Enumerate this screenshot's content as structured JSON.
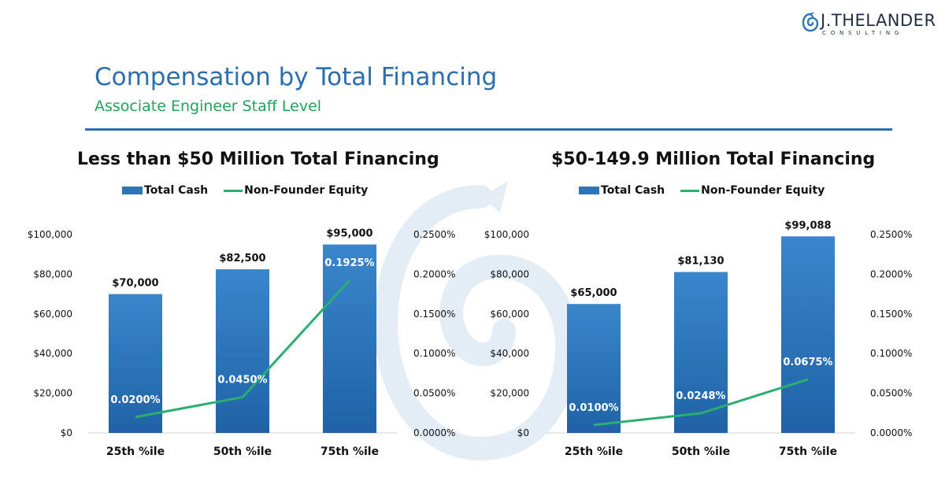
{
  "logo": {
    "brand": "J.THELANDER",
    "tagline": "CONSULTING"
  },
  "header": {
    "title": "Compensation by Total Financing",
    "subtitle": "Associate Engineer Staff Level"
  },
  "colors": {
    "bar": "#2e75b6",
    "line": "#2aae72",
    "title": "#2b6fae",
    "subtitle": "#21a35a"
  },
  "chart_data": [
    {
      "type": "bar",
      "title": "Less than $50 Million Total Financing",
      "legend": [
        "Total Cash",
        "Non-Founder Equity"
      ],
      "legend_position": "top",
      "categories": [
        "25th %ile",
        "50th %ile",
        "75th %ile"
      ],
      "series": [
        {
          "name": "Total Cash",
          "type": "bar",
          "axis": "left",
          "values": [
            70000,
            82500,
            95000
          ],
          "labels": [
            "$70,000",
            "$82,500",
            "$95,000"
          ]
        },
        {
          "name": "Non-Founder Equity",
          "type": "line",
          "axis": "right",
          "values": [
            0.0002,
            0.00045,
            0.001925
          ],
          "labels": [
            "0.0200%",
            "0.0450%",
            "0.1925%"
          ]
        }
      ],
      "y_left": {
        "min": 0,
        "max": 100000,
        "ticks": [
          "$0",
          "$20,000",
          "$40,000",
          "$60,000",
          "$80,000",
          "$100,000"
        ],
        "tick_values": [
          0,
          20000,
          40000,
          60000,
          80000,
          100000
        ]
      },
      "y_right": {
        "min": 0,
        "max": 0.0025,
        "ticks": [
          "0.0000%",
          "0.0500%",
          "0.1000%",
          "0.1500%",
          "0.2000%",
          "0.2500%"
        ],
        "tick_values": [
          0,
          0.0005,
          0.001,
          0.0015,
          0.002,
          0.0025
        ]
      },
      "grid": false
    },
    {
      "type": "bar",
      "title": "$50-149.9 Million Total Financing",
      "legend": [
        "Total Cash",
        "Non-Founder Equity"
      ],
      "legend_position": "top",
      "categories": [
        "25th %ile",
        "50th %ile",
        "75th %ile"
      ],
      "series": [
        {
          "name": "Total Cash",
          "type": "bar",
          "axis": "left",
          "values": [
            65000,
            81130,
            99088
          ],
          "labels": [
            "$65,000",
            "$81,130",
            "$99,088"
          ]
        },
        {
          "name": "Non-Founder Equity",
          "type": "line",
          "axis": "right",
          "values": [
            0.0001,
            0.000248,
            0.000675
          ],
          "labels": [
            "0.0100%",
            "0.0248%",
            "0.0675%"
          ]
        }
      ],
      "y_left": {
        "min": 0,
        "max": 100000,
        "ticks": [
          "$0",
          "$20,000",
          "$40,000",
          "$60,000",
          "$80,000",
          "$100,000"
        ],
        "tick_values": [
          0,
          20000,
          40000,
          60000,
          80000,
          100000
        ]
      },
      "y_right": {
        "min": 0,
        "max": 0.0025,
        "ticks": [
          "0.0000%",
          "0.0500%",
          "0.1000%",
          "0.1500%",
          "0.2000%",
          "0.2500%"
        ],
        "tick_values": [
          0,
          0.0005,
          0.001,
          0.0015,
          0.002,
          0.0025
        ]
      },
      "grid": false
    }
  ]
}
